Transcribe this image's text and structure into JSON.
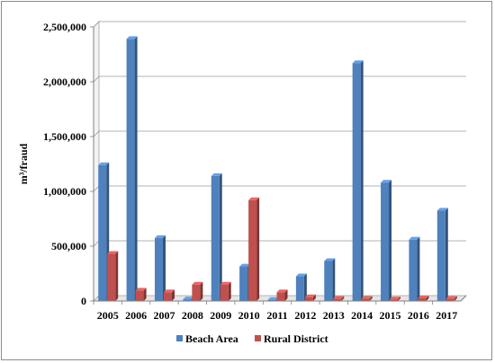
{
  "chart_data": {
    "type": "bar",
    "categories": [
      "2005",
      "2006",
      "2007",
      "2008",
      "2009",
      "2010",
      "2011",
      "2012",
      "2013",
      "2014",
      "2015",
      "2016",
      "2017"
    ],
    "series": [
      {
        "name": "Beach Area",
        "color": "#4f81bd",
        "values": [
          1240000,
          2390000,
          575000,
          15000,
          1140000,
          315000,
          10000,
          225000,
          365000,
          2170000,
          1080000,
          560000,
          825000
        ]
      },
      {
        "name": "Rural District",
        "color": "#c0504d",
        "values": [
          430000,
          95000,
          80000,
          150000,
          150000,
          920000,
          80000,
          35000,
          20000,
          20000,
          15000,
          25000,
          20000
        ]
      }
    ],
    "ylabel": "m³/fraud",
    "ylim": [
      0,
      2500000
    ],
    "yticks": [
      0,
      500000,
      1000000,
      1500000,
      2000000,
      2500000
    ],
    "ytick_labels": [
      "0",
      "500,000",
      "1,000,000",
      "1,500,000",
      "2,000,000",
      "2,500,000"
    ],
    "grid": true,
    "legend_position": "bottom"
  }
}
